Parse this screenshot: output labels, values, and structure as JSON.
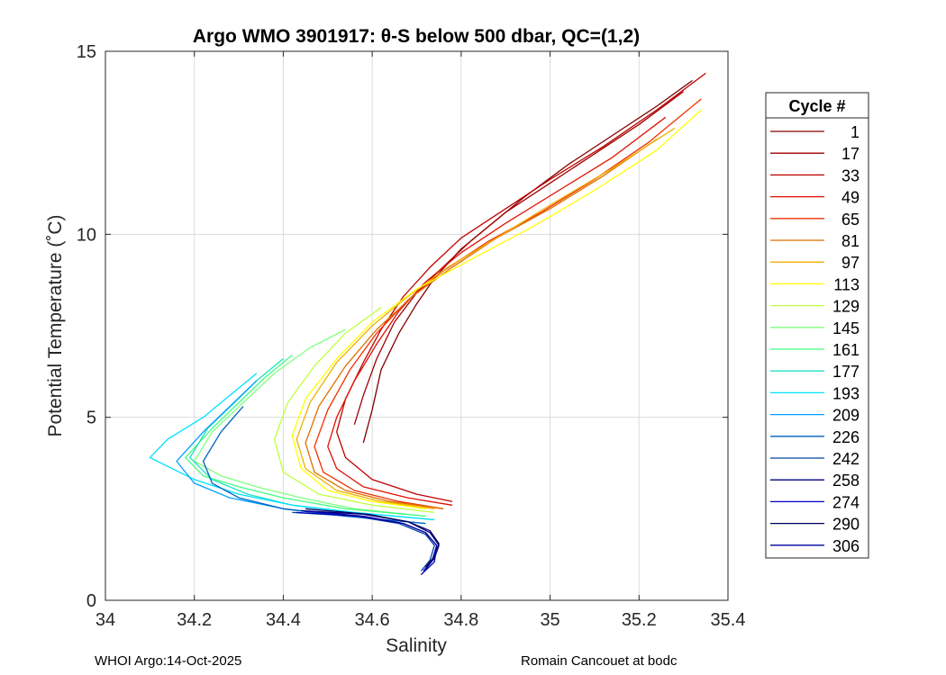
{
  "chart_data": {
    "type": "line",
    "title": "Argo WMO 3901917: θ-S below 500 dbar,  QC=(1,2)",
    "xlabel": "Salinity",
    "ylabel": "Potential Temperature (˚C)",
    "xlim": [
      34,
      35.4
    ],
    "ylim": [
      0,
      15
    ],
    "xticks": [
      "34",
      "34.2",
      "34.4",
      "34.6",
      "34.8",
      "35",
      "35.2",
      "35.4"
    ],
    "yticks": [
      "0",
      "5",
      "10",
      "15"
    ],
    "grid": true,
    "legend": {
      "title": "Cycle #",
      "placement": "outside-right",
      "entries": [
        {
          "label": "1",
          "color": "#800000"
        },
        {
          "label": "17",
          "color": "#a00000"
        },
        {
          "label": "33",
          "color": "#c00000"
        },
        {
          "label": "49",
          "color": "#e01000"
        },
        {
          "label": "65",
          "color": "#f03000"
        },
        {
          "label": "81",
          "color": "#e07000"
        },
        {
          "label": "97",
          "color": "#f0b000"
        },
        {
          "label": "113",
          "color": "#ffff00"
        },
        {
          "label": "129",
          "color": "#c0ff40"
        },
        {
          "label": "145",
          "color": "#80ff80"
        },
        {
          "label": "161",
          "color": "#40ff80"
        },
        {
          "label": "177",
          "color": "#20e0c0"
        },
        {
          "label": "193",
          "color": "#00e0ff"
        },
        {
          "label": "209",
          "color": "#00a0ff"
        },
        {
          "label": "226",
          "color": "#0060c0"
        },
        {
          "label": "242",
          "color": "#0040a0"
        },
        {
          "label": "258",
          "color": "#000080"
        },
        {
          "label": "274",
          "color": "#0000c0"
        },
        {
          "label": "290",
          "color": "#000060"
        },
        {
          "label": "306",
          "color": "#0000a0"
        }
      ]
    },
    "series": [
      {
        "cycle": "1",
        "color": "#800000",
        "x": [
          34.58,
          34.6,
          34.62,
          34.66,
          34.7,
          34.74,
          34.8,
          34.86,
          34.94,
          35.04,
          35.14,
          35.24,
          35.32
        ],
        "y": [
          4.3,
          5.2,
          6.3,
          7.3,
          8.1,
          8.8,
          9.6,
          10.2,
          11.0,
          11.9,
          12.7,
          13.5,
          14.2
        ]
      },
      {
        "cycle": "17",
        "color": "#a00000",
        "x": [
          34.56,
          34.58,
          34.61,
          34.65,
          34.7,
          34.75,
          34.82,
          34.9,
          35.0,
          35.1,
          35.2,
          35.3
        ],
        "y": [
          4.8,
          5.6,
          6.6,
          7.6,
          8.4,
          9.0,
          9.8,
          10.6,
          11.4,
          12.2,
          13.0,
          13.9
        ]
      },
      {
        "cycle": "33",
        "color": "#c00000",
        "x": [
          34.78,
          34.7,
          34.6,
          34.54,
          34.52,
          34.54,
          34.58,
          34.62,
          34.67,
          34.73,
          34.8,
          34.9,
          35.0,
          35.12,
          35.24,
          35.35
        ],
        "y": [
          2.7,
          2.9,
          3.3,
          3.9,
          4.6,
          5.5,
          6.5,
          7.4,
          8.3,
          9.1,
          9.9,
          10.7,
          11.5,
          12.4,
          13.4,
          14.4
        ]
      },
      {
        "cycle": "49",
        "color": "#e01000",
        "x": [
          34.78,
          34.68,
          34.58,
          34.52,
          34.5,
          34.52,
          34.56,
          34.61,
          34.66,
          34.72,
          34.8,
          34.9,
          35.02,
          35.14,
          35.26
        ],
        "y": [
          2.6,
          2.8,
          3.1,
          3.6,
          4.2,
          5.0,
          6.0,
          7.0,
          7.9,
          8.7,
          9.5,
          10.3,
          11.2,
          12.1,
          13.2
        ]
      },
      {
        "cycle": "65",
        "color": "#f03000",
        "x": [
          34.76,
          34.66,
          34.56,
          34.49,
          34.47,
          34.5,
          34.55,
          34.61,
          34.68,
          34.76,
          34.86,
          34.98,
          35.1,
          35.22,
          35.34
        ],
        "y": [
          2.5,
          2.7,
          3.0,
          3.5,
          4.2,
          5.2,
          6.3,
          7.3,
          8.2,
          9.0,
          9.8,
          10.6,
          11.5,
          12.5,
          13.7
        ]
      },
      {
        "cycle": "81",
        "color": "#e07000",
        "x": [
          34.76,
          34.64,
          34.54,
          34.47,
          34.45,
          34.48,
          34.54,
          34.61,
          34.69,
          34.78,
          34.88,
          35.0,
          35.12,
          35.24
        ],
        "y": [
          2.5,
          2.7,
          3.0,
          3.5,
          4.3,
          5.3,
          6.4,
          7.4,
          8.3,
          9.1,
          9.9,
          10.7,
          11.6,
          12.6
        ]
      },
      {
        "cycle": "97",
        "color": "#f0b000",
        "x": [
          34.74,
          34.62,
          34.52,
          34.45,
          34.43,
          34.46,
          34.52,
          34.6,
          34.68,
          34.77,
          34.88,
          35.0,
          35.14,
          35.28
        ],
        "y": [
          2.5,
          2.7,
          3.0,
          3.6,
          4.4,
          5.4,
          6.5,
          7.5,
          8.3,
          9.1,
          9.9,
          10.8,
          11.8,
          12.9
        ]
      },
      {
        "cycle": "113",
        "color": "#ffff00",
        "x": [
          34.72,
          34.6,
          34.5,
          34.44,
          34.42,
          34.45,
          34.52,
          34.6,
          34.7,
          34.82,
          34.96,
          35.1,
          35.24,
          35.34
        ],
        "y": [
          2.5,
          2.7,
          3.0,
          3.6,
          4.5,
          5.5,
          6.6,
          7.6,
          8.5,
          9.3,
          10.2,
          11.2,
          12.3,
          13.4
        ]
      },
      {
        "cycle": "129",
        "color": "#c0ff40",
        "x": [
          34.74,
          34.6,
          34.48,
          34.4,
          34.38,
          34.41,
          34.47,
          34.54,
          34.62
        ],
        "y": [
          2.4,
          2.6,
          2.9,
          3.5,
          4.4,
          5.4,
          6.4,
          7.3,
          8.0
        ]
      },
      {
        "cycle": "145",
        "color": "#80ff80",
        "x": [
          34.72,
          34.56,
          34.44,
          34.34,
          34.26,
          34.2,
          34.24,
          34.31,
          34.38,
          34.46,
          34.54
        ],
        "y": [
          2.3,
          2.5,
          2.8,
          3.1,
          3.4,
          3.8,
          4.6,
          5.4,
          6.2,
          6.9,
          7.4
        ]
      },
      {
        "cycle": "161",
        "color": "#40ff80",
        "x": [
          34.72,
          34.54,
          34.4,
          34.3,
          34.22,
          34.18,
          34.24,
          34.3,
          34.36,
          34.42
        ],
        "y": [
          2.3,
          2.5,
          2.8,
          3.1,
          3.4,
          3.9,
          4.7,
          5.4,
          6.1,
          6.7
        ]
      },
      {
        "cycle": "177",
        "color": "#20e0c0",
        "x": [
          34.74,
          34.56,
          34.42,
          34.32,
          34.24,
          34.19,
          34.23,
          34.29,
          34.34,
          34.4
        ],
        "y": [
          2.2,
          2.4,
          2.6,
          2.9,
          3.3,
          3.9,
          4.7,
          5.4,
          6.0,
          6.6
        ]
      },
      {
        "cycle": "193",
        "color": "#00e0ff",
        "x": [
          34.74,
          34.56,
          34.42,
          34.3,
          34.2,
          34.1,
          34.14,
          34.22,
          34.28,
          34.34
        ],
        "y": [
          2.2,
          2.4,
          2.6,
          2.9,
          3.3,
          3.9,
          4.4,
          5.0,
          5.6,
          6.2
        ]
      },
      {
        "cycle": "209",
        "color": "#00a0ff",
        "x": [
          34.72,
          34.54,
          34.4,
          34.28,
          34.2,
          34.16,
          34.22,
          34.28,
          34.34
        ],
        "y": [
          2.1,
          2.3,
          2.5,
          2.8,
          3.2,
          3.8,
          4.6,
          5.3,
          6.0
        ]
      },
      {
        "cycle": "226",
        "color": "#0060c0",
        "x": [
          34.72,
          34.54,
          34.4,
          34.3,
          34.24,
          34.22,
          34.26,
          34.31
        ],
        "y": [
          2.1,
          2.3,
          2.5,
          2.8,
          3.2,
          3.8,
          4.6,
          5.3
        ]
      },
      {
        "cycle": "242",
        "color": "#0040a0",
        "x": [
          34.42,
          34.56,
          34.66,
          34.72,
          34.74,
          34.73,
          34.71
        ],
        "y": [
          2.4,
          2.3,
          2.1,
          1.8,
          1.5,
          1.1,
          0.8
        ]
      },
      {
        "cycle": "258",
        "color": "#000080",
        "x": [
          34.44,
          34.58,
          34.68,
          34.73,
          34.75,
          34.74,
          34.72
        ],
        "y": [
          2.45,
          2.35,
          2.15,
          1.85,
          1.5,
          1.15,
          0.85
        ]
      },
      {
        "cycle": "274",
        "color": "#0000c0",
        "x": [
          34.43,
          34.57,
          34.67,
          34.72,
          34.745,
          34.735,
          34.715
        ],
        "y": [
          2.4,
          2.3,
          2.1,
          1.85,
          1.5,
          1.1,
          0.8
        ]
      },
      {
        "cycle": "290",
        "color": "#000060",
        "x": [
          34.45,
          34.59,
          34.68,
          34.73,
          34.75,
          34.74,
          34.72
        ],
        "y": [
          2.5,
          2.35,
          2.15,
          1.9,
          1.55,
          1.2,
          0.9
        ]
      },
      {
        "cycle": "306",
        "color": "#0000a0",
        "x": [
          34.44,
          34.58,
          34.67,
          34.72,
          34.745,
          34.74,
          34.71
        ],
        "y": [
          2.45,
          2.3,
          2.1,
          1.85,
          1.5,
          1.05,
          0.7
        ]
      }
    ]
  },
  "footer": {
    "left": "WHOI Argo:14-Oct-2025",
    "right": "Romain Cancouet at bodc"
  }
}
